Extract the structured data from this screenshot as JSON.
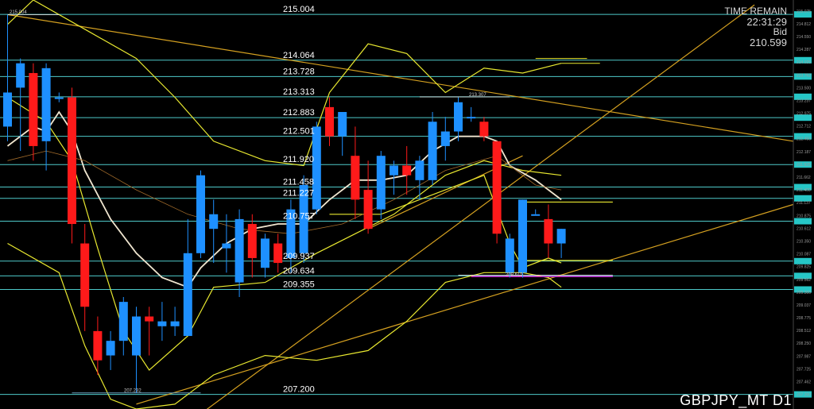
{
  "window": {
    "symbol_label": "GBPJPY_MT D1",
    "time_remain_label": "TIME REMAIN",
    "time_remain_value": "22:31:29",
    "bid_label": "Bid",
    "bid_value": "210.599"
  },
  "colors": {
    "background": "#000000",
    "bull": "#1e90ff",
    "bear": "#ff1a1a",
    "level_line": "#4ec9c9",
    "trend_line": "#d4a020",
    "band": "#e8e830",
    "ma_fast": "#f0e6d0",
    "support_mark": "#cc22cc",
    "axis_badge": "#26c6c6"
  },
  "chart_data": {
    "type": "candlestick",
    "ylim": [
      206.9,
      215.3
    ],
    "horizontal_levels": [
      "215.004",
      "214.064",
      "213.728",
      "213.313",
      "212.883",
      "212.501",
      "211.920",
      "211.458",
      "211.227",
      "210.757",
      "209.937",
      "209.634",
      "209.355",
      "207.200"
    ],
    "level_values": [
      215.004,
      214.064,
      213.728,
      213.313,
      212.883,
      212.501,
      211.92,
      211.458,
      211.227,
      210.757,
      209.937,
      209.634,
      209.355,
      207.2
    ],
    "annotations": [
      {
        "text": "215.004",
        "price": 215.004
      },
      {
        "text": "213.307",
        "price": 213.307
      },
      {
        "text": "209.615",
        "price": 209.615
      },
      {
        "text": "207.232",
        "price": 207.232
      }
    ],
    "candles": [
      {
        "o": 212.7,
        "h": 215.0,
        "l": 212.4,
        "c": 213.4
      },
      {
        "o": 213.5,
        "h": 214.1,
        "l": 212.2,
        "c": 214.0
      },
      {
        "o": 213.8,
        "h": 214.0,
        "l": 212.0,
        "c": 212.3
      },
      {
        "o": 212.4,
        "h": 214.0,
        "l": 211.8,
        "c": 213.9
      },
      {
        "o": 213.3,
        "h": 213.4,
        "l": 213.2,
        "c": 213.3
      },
      {
        "o": 213.3,
        "h": 213.5,
        "l": 210.3,
        "c": 210.7
      },
      {
        "o": 210.3,
        "h": 210.7,
        "l": 208.5,
        "c": 209.0
      },
      {
        "o": 208.5,
        "h": 208.8,
        "l": 207.6,
        "c": 207.9
      },
      {
        "o": 208.0,
        "h": 208.5,
        "l": 207.7,
        "c": 208.3
      },
      {
        "o": 208.3,
        "h": 209.2,
        "l": 208.0,
        "c": 209.1
      },
      {
        "o": 208.0,
        "h": 209.0,
        "l": 207.23,
        "c": 208.8
      },
      {
        "o": 208.8,
        "h": 209.0,
        "l": 208.0,
        "c": 208.7
      },
      {
        "o": 208.6,
        "h": 209.1,
        "l": 208.3,
        "c": 208.7
      },
      {
        "o": 208.6,
        "h": 209.0,
        "l": 208.4,
        "c": 208.7
      },
      {
        "o": 208.4,
        "h": 210.8,
        "l": 208.4,
        "c": 210.1
      },
      {
        "o": 210.1,
        "h": 211.8,
        "l": 210.0,
        "c": 211.7
      },
      {
        "o": 210.6,
        "h": 211.2,
        "l": 209.9,
        "c": 210.9
      },
      {
        "o": 210.2,
        "h": 210.9,
        "l": 209.7,
        "c": 210.3
      },
      {
        "o": 209.5,
        "h": 211.0,
        "l": 209.2,
        "c": 210.8
      },
      {
        "o": 210.7,
        "h": 210.9,
        "l": 209.6,
        "c": 210.0
      },
      {
        "o": 209.8,
        "h": 210.5,
        "l": 209.6,
        "c": 210.4
      },
      {
        "o": 210.3,
        "h": 210.5,
        "l": 209.7,
        "c": 209.9
      },
      {
        "o": 210.0,
        "h": 211.2,
        "l": 209.7,
        "c": 211.0
      },
      {
        "o": 210.1,
        "h": 211.7,
        "l": 209.9,
        "c": 211.5
      },
      {
        "o": 211.0,
        "h": 212.8,
        "l": 210.9,
        "c": 212.7
      },
      {
        "o": 213.1,
        "h": 213.3,
        "l": 212.3,
        "c": 212.5
      },
      {
        "o": 212.5,
        "h": 213.0,
        "l": 212.1,
        "c": 213.0
      },
      {
        "o": 212.1,
        "h": 212.7,
        "l": 210.8,
        "c": 211.2
      },
      {
        "o": 211.4,
        "h": 212.0,
        "l": 210.5,
        "c": 210.6
      },
      {
        "o": 211.0,
        "h": 212.2,
        "l": 210.8,
        "c": 212.1
      },
      {
        "o": 211.7,
        "h": 212.0,
        "l": 211.3,
        "c": 211.9
      },
      {
        "o": 211.9,
        "h": 212.3,
        "l": 211.3,
        "c": 211.7
      },
      {
        "o": 211.6,
        "h": 212.1,
        "l": 211.2,
        "c": 212.0
      },
      {
        "o": 211.6,
        "h": 213.0,
        "l": 211.5,
        "c": 212.8
      },
      {
        "o": 212.3,
        "h": 212.9,
        "l": 212.0,
        "c": 212.6
      },
      {
        "o": 212.6,
        "h": 213.3,
        "l": 212.4,
        "c": 213.2
      },
      {
        "o": 212.9,
        "h": 213.1,
        "l": 212.8,
        "c": 212.9
      },
      {
        "o": 212.8,
        "h": 212.9,
        "l": 212.4,
        "c": 212.5
      },
      {
        "o": 212.4,
        "h": 212.4,
        "l": 210.3,
        "c": 210.5
      },
      {
        "o": 209.7,
        "h": 210.5,
        "l": 209.6,
        "c": 210.4
      },
      {
        "o": 209.7,
        "h": 211.2,
        "l": 209.6,
        "c": 211.2
      },
      {
        "o": 210.9,
        "h": 211.0,
        "l": 210.9,
        "c": 210.9
      },
      {
        "o": 210.8,
        "h": 211.1,
        "l": 210.0,
        "c": 210.3
      },
      {
        "o": 210.3,
        "h": 210.6,
        "l": 210.0,
        "c": 210.6
      }
    ]
  }
}
